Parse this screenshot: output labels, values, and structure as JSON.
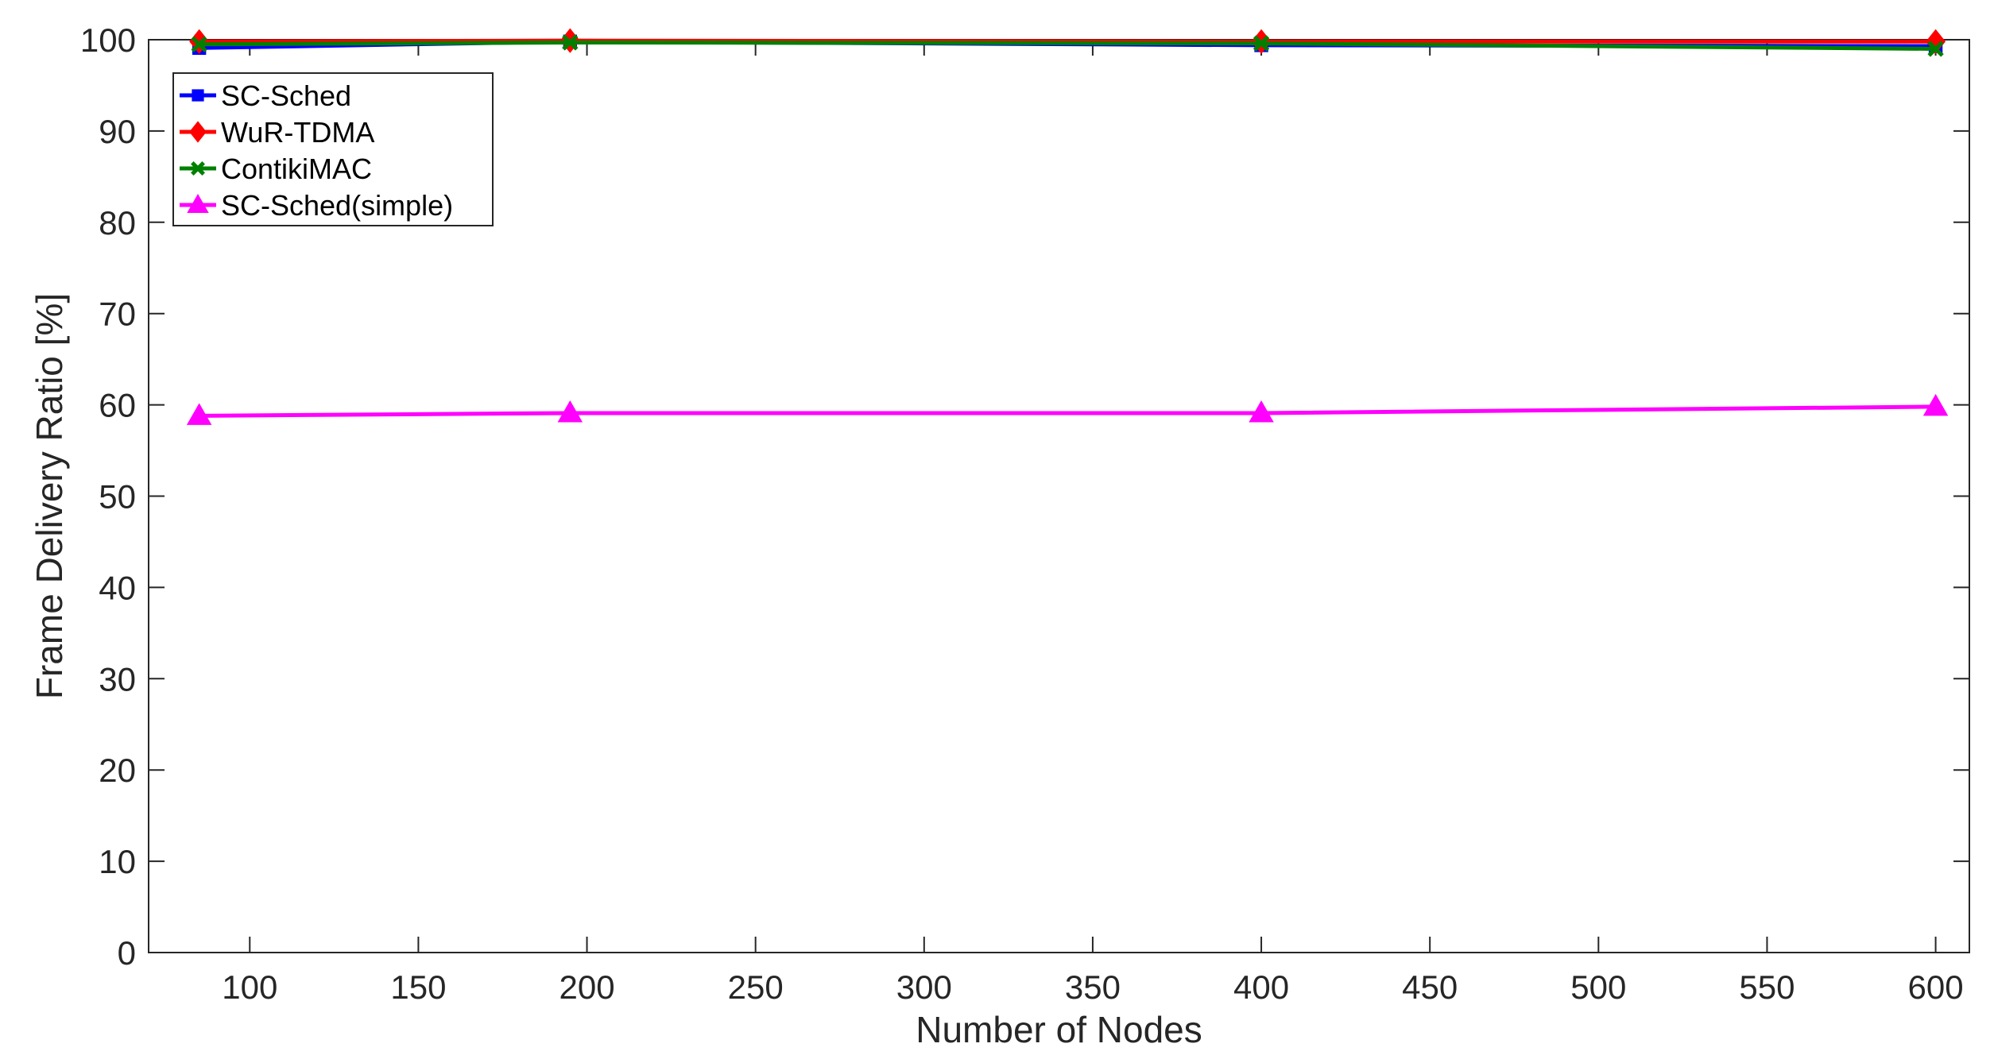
{
  "chart_data": {
    "type": "line",
    "xlabel": "Number of Nodes",
    "ylabel": "Frame Delivery Ratio [%]",
    "xlim": [
      70,
      610
    ],
    "ylim": [
      0,
      100
    ],
    "xticks": [
      100,
      150,
      200,
      250,
      300,
      350,
      400,
      450,
      500,
      550,
      600
    ],
    "yticks": [
      0,
      10,
      20,
      30,
      40,
      50,
      60,
      70,
      80,
      90,
      100
    ],
    "grid": false,
    "legend_position": "top-left",
    "x": [
      85,
      195,
      400,
      600
    ],
    "series": [
      {
        "name": "SC-Sched",
        "color": "#0000ff",
        "marker": "square",
        "values": [
          99.1,
          99.8,
          99.4,
          99.3
        ]
      },
      {
        "name": "WuR-TDMA",
        "color": "#ff0000",
        "marker": "diamond",
        "values": [
          99.8,
          99.9,
          99.8,
          99.8
        ]
      },
      {
        "name": "ContikiMAC",
        "color": "#008000",
        "marker": "x",
        "values": [
          99.5,
          99.7,
          99.6,
          99.0
        ]
      },
      {
        "name": "SC-Sched(simple)",
        "color": "#ff00ff",
        "marker": "triangle",
        "values": [
          58.8,
          59.1,
          59.1,
          59.8
        ]
      }
    ]
  }
}
